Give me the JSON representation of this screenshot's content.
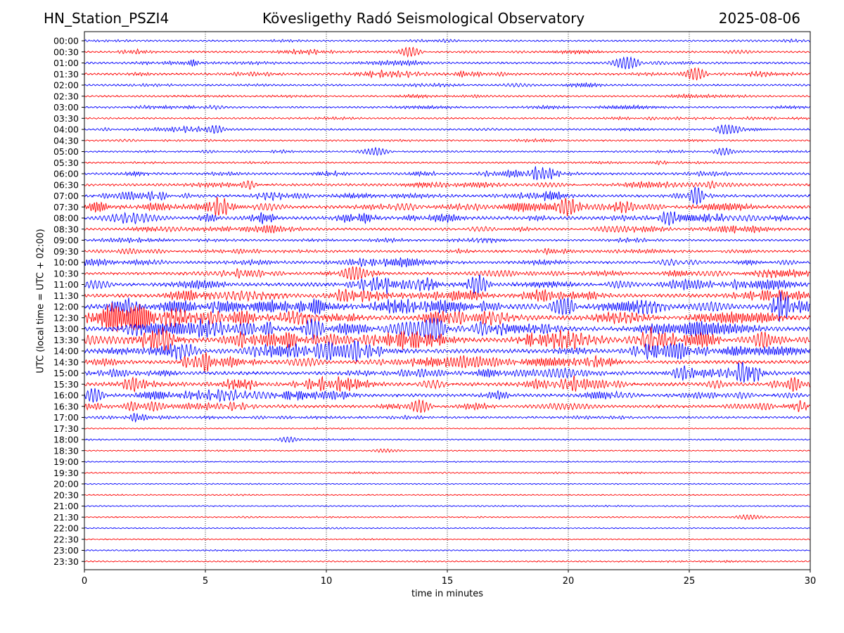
{
  "header": {
    "station": "HN_Station_PSZI4",
    "title": "Kövesligethy Radó Seismological Observatory",
    "date": "2025-08-06"
  },
  "chart_data": {
    "type": "line",
    "xlabel": "time in minutes",
    "ylabel": "UTC (local time = UTC + 02:00)",
    "xlim": [
      0,
      30
    ],
    "x_ticks": [
      "0",
      "5",
      "10",
      "15",
      "20",
      "25",
      "30"
    ],
    "x_tick_values": [
      0,
      5,
      10,
      15,
      20,
      25,
      30
    ],
    "vertical_grid": "dotted",
    "trace_colors": [
      "#0000ff",
      "#ff0000"
    ],
    "rows": [
      "00:00",
      "00:30",
      "01:00",
      "01:30",
      "02:00",
      "02:30",
      "03:00",
      "03:30",
      "04:00",
      "04:30",
      "05:00",
      "05:30",
      "06:00",
      "06:30",
      "07:00",
      "07:30",
      "08:00",
      "08:30",
      "09:00",
      "09:30",
      "10:00",
      "10:30",
      "11:00",
      "11:30",
      "12:00",
      "12:30",
      "13:00",
      "13:30",
      "14:00",
      "14:30",
      "15:00",
      "15:30",
      "16:00",
      "16:30",
      "17:00",
      "17:30",
      "18:00",
      "18:30",
      "19:00",
      "19:30",
      "20:00",
      "20:30",
      "21:00",
      "21:30",
      "22:00",
      "22:30",
      "23:00",
      "23:30"
    ],
    "row_activity": [
      0.15,
      0.2,
      0.25,
      0.3,
      0.2,
      0.18,
      0.2,
      0.15,
      0.2,
      0.15,
      0.15,
      0.15,
      0.3,
      0.35,
      0.4,
      0.5,
      0.55,
      0.35,
      0.25,
      0.3,
      0.4,
      0.4,
      0.6,
      0.6,
      0.8,
      0.85,
      0.8,
      0.85,
      0.75,
      0.55,
      0.55,
      0.6,
      0.5,
      0.45,
      0.25,
      0.05,
      0.08,
      0.05,
      0.05,
      0.07,
      0.03,
      0.04,
      0.06,
      0.05,
      0.04,
      0.05,
      0.06,
      0.08
    ],
    "events": [
      {
        "row": "00:30",
        "t": 13.4,
        "amp": 0.6
      },
      {
        "row": "01:00",
        "t": 22.4,
        "amp": 0.9
      },
      {
        "row": "01:30",
        "t": 25.2,
        "amp": 0.8
      },
      {
        "row": "04:00",
        "t": 5.4,
        "amp": 0.6
      },
      {
        "row": "04:00",
        "t": 26.6,
        "amp": 0.7
      },
      {
        "row": "05:00",
        "t": 12.0,
        "amp": 0.55
      },
      {
        "row": "05:00",
        "t": 26.5,
        "amp": 0.45
      },
      {
        "row": "06:00",
        "t": 18.9,
        "amp": 0.8
      },
      {
        "row": "07:00",
        "t": 25.2,
        "amp": 0.9
      },
      {
        "row": "07:30",
        "t": 5.6,
        "amp": 0.9
      },
      {
        "row": "07:30",
        "t": 20.0,
        "amp": 1.0
      },
      {
        "row": "08:00",
        "t": 24.2,
        "amp": 0.9
      },
      {
        "row": "10:30",
        "t": 11.2,
        "amp": 1.0
      },
      {
        "row": "11:00",
        "t": 16.3,
        "amp": 1.0
      },
      {
        "row": "12:00",
        "t": 19.8,
        "amp": 1.2
      },
      {
        "row": "12:00",
        "t": 28.9,
        "amp": 1.1
      },
      {
        "row": "12:30",
        "t": 5.2,
        "amp": 0.8
      },
      {
        "row": "13:00",
        "t": 9.5,
        "amp": 1.1
      },
      {
        "row": "13:00",
        "t": 14.7,
        "amp": 1.1
      },
      {
        "row": "13:30",
        "t": 3.2,
        "amp": 1.2
      },
      {
        "row": "13:30",
        "t": 28.1,
        "amp": 1.3
      },
      {
        "row": "14:00",
        "t": 9.9,
        "amp": 1.2
      },
      {
        "row": "14:30",
        "t": 4.7,
        "amp": 0.9
      },
      {
        "row": "15:00",
        "t": 27.3,
        "amp": 1.4
      },
      {
        "row": "15:30",
        "t": 2.1,
        "amp": 0.8
      },
      {
        "row": "16:00",
        "t": 0.4,
        "amp": 0.8
      },
      {
        "row": "16:30",
        "t": 13.8,
        "amp": 0.8
      },
      {
        "row": "18:00",
        "t": 8.5,
        "amp": 0.35
      },
      {
        "row": "18:30",
        "t": 12.5,
        "amp": 0.25
      },
      {
        "row": "21:30",
        "t": 27.5,
        "amp": 0.35
      }
    ]
  }
}
